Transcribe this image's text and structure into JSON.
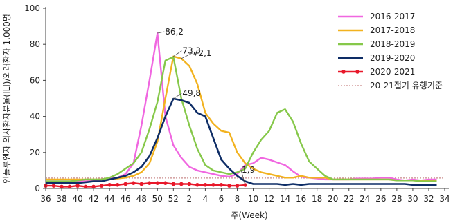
{
  "chart_data": {
    "type": "line",
    "xlabel": "주(Week)",
    "ylabel": "인플루엔자 의사환자분율(ILI)/외래환자 1,000명",
    "ylim": [
      0,
      100
    ],
    "y_ticks": [
      0,
      20,
      40,
      60,
      80,
      100
    ],
    "x_ticks": [
      "36",
      "38",
      "40",
      "42",
      "44",
      "46",
      "48",
      "50",
      "52",
      "2",
      "4",
      "6",
      "8",
      "10",
      "12",
      "14",
      "16",
      "18",
      "20",
      "22",
      "24",
      "26",
      "28",
      "30",
      "32",
      "34"
    ],
    "grid": false,
    "legend_position": "top-right",
    "series": [
      {
        "name": "2016-2017",
        "color": "#f067e0",
        "marker": "none",
        "values": [
          4,
          4,
          4,
          4,
          4,
          4,
          4.5,
          5,
          5.5,
          6,
          8,
          14,
          35,
          60,
          86.2,
          40,
          24,
          17,
          12,
          10,
          9,
          8,
          7,
          6.5,
          8,
          13,
          14,
          17,
          16,
          14.5,
          13,
          9.5,
          6.5,
          6,
          5.5,
          5,
          5,
          5,
          5,
          5.5,
          5.5,
          5.5,
          6,
          6,
          5,
          4.5,
          5,
          4.5,
          5,
          5
        ]
      },
      {
        "name": "2017-2018",
        "color": "#f2b21f",
        "marker": "none",
        "values": [
          5,
          5,
          5,
          5,
          5,
          5,
          5,
          5,
          5,
          5.5,
          6,
          7,
          9,
          14,
          26,
          50,
          73.3,
          72.1,
          68,
          58,
          42,
          36,
          32,
          31,
          20,
          14,
          11,
          9,
          8,
          7,
          6,
          6,
          7,
          6,
          6,
          6,
          5,
          5,
          5,
          5,
          5,
          5,
          5,
          5,
          4.5,
          4.5,
          4.5,
          4.5,
          4.5,
          4.5
        ]
      },
      {
        "name": "2018-2019",
        "color": "#86c84a",
        "marker": "none",
        "values": [
          4,
          4,
          4,
          4,
          4.5,
          5,
          5,
          5,
          6,
          8,
          11,
          14,
          20,
          33,
          48,
          71,
          73,
          50,
          35,
          22,
          13,
          10,
          9,
          8,
          9,
          11,
          20,
          27,
          32,
          42,
          44,
          37,
          25,
          15,
          11,
          7,
          5,
          5,
          5,
          5,
          5,
          5,
          5,
          5,
          4.5,
          4.5,
          4.5,
          4,
          4,
          4
        ]
      },
      {
        "name": "2019-2020",
        "color": "#0e2d66",
        "marker": "none",
        "values": [
          3,
          3,
          3,
          3,
          3,
          3.5,
          4,
          4,
          5,
          6,
          7,
          9,
          12,
          18,
          28,
          40,
          49.8,
          49,
          47.5,
          42,
          40,
          28,
          16,
          11,
          7,
          4,
          2.5,
          2.5,
          2.5,
          2.5,
          2,
          2.5,
          2,
          2.5,
          2.5,
          2.5,
          2.5,
          2.5,
          2.5,
          2.5,
          2.5,
          2.5,
          2.5,
          2.5,
          2.5,
          2.5,
          2,
          2,
          2,
          2
        ]
      },
      {
        "name": "2020-2021",
        "color": "#e8182a",
        "marker": "circle",
        "values": [
          1.5,
          1.5,
          1,
          1,
          1.5,
          1,
          1,
          1.5,
          2,
          2,
          2.5,
          3,
          2.5,
          3,
          3,
          3,
          2.5,
          2.5,
          2.5,
          2,
          2,
          2,
          2,
          1.5,
          1.5,
          1.9
        ]
      },
      {
        "name": "20-21절기 유행기준",
        "color": "#c98a8a",
        "marker": "none",
        "dashed": true,
        "constant": 5.8
      }
    ],
    "annotations": [
      {
        "text": "86,2",
        "x_index": 14,
        "y": 86.2
      },
      {
        "text": "73,3",
        "x_index": 16,
        "y": 73.3
      },
      {
        "text": "72,1",
        "x_index": 17,
        "y": 72.1
      },
      {
        "text": "49,8",
        "x_index": 16,
        "y": 49.8
      },
      {
        "text": "1,9",
        "x_index": 25,
        "y": 1.9
      }
    ]
  }
}
